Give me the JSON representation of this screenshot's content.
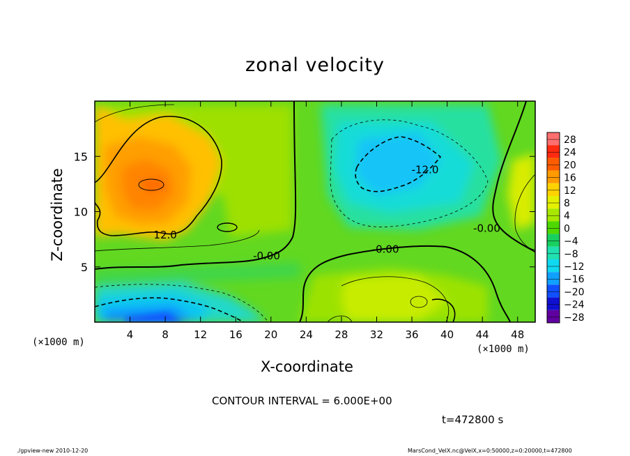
{
  "header": {
    "contour_interval_text": "CONTOUR INTERVAL = 6.000E+00",
    "time_text": "t=472800 s"
  },
  "footer": {
    "left": "./gpview-new  2010-12-20",
    "right": "MarsCond_VelX.nc@VelX,x=0:50000,z=0:20000,t=472800"
  },
  "chart_data": {
    "type": "heatmap",
    "title": "zonal velocity",
    "xlabel": "X-coordinate",
    "ylabel": "Z-coordinate",
    "x_unit": "(×1000 m)",
    "xlim": [
      0,
      50
    ],
    "ylim": [
      0,
      20
    ],
    "x_ticks": [
      4,
      8,
      12,
      16,
      20,
      24,
      28,
      32,
      36,
      40,
      44,
      48
    ],
    "y_ticks": [
      5,
      10,
      15
    ],
    "colorbar_levels": [
      28,
      24,
      20,
      16,
      12,
      8,
      4,
      0,
      -4,
      -8,
      -12,
      -16,
      -20,
      -24,
      -28
    ],
    "colorbar_colors": [
      "#ff6f6f",
      "#ff2a10",
      "#ff5c00",
      "#ff9a00",
      "#ffd200",
      "#e4f000",
      "#a8e800",
      "#4ed800",
      "#18d060",
      "#20e0b0",
      "#10d8f0",
      "#10a0ff",
      "#1050ff",
      "#1010d0",
      "#6000a0"
    ],
    "contour_labels": [
      {
        "text": "12.0",
        "x": 8,
        "z": 7.9
      },
      {
        "text": "-0.00",
        "x": 19.5,
        "z": 6.0
      },
      {
        "text": "-0.00",
        "x": 33,
        "z": 6.6
      },
      {
        "text": "-0.00",
        "x": 44.5,
        "z": 8.5
      },
      {
        "text": "-12.0",
        "x": 37.5,
        "z": 13.8
      }
    ]
  }
}
